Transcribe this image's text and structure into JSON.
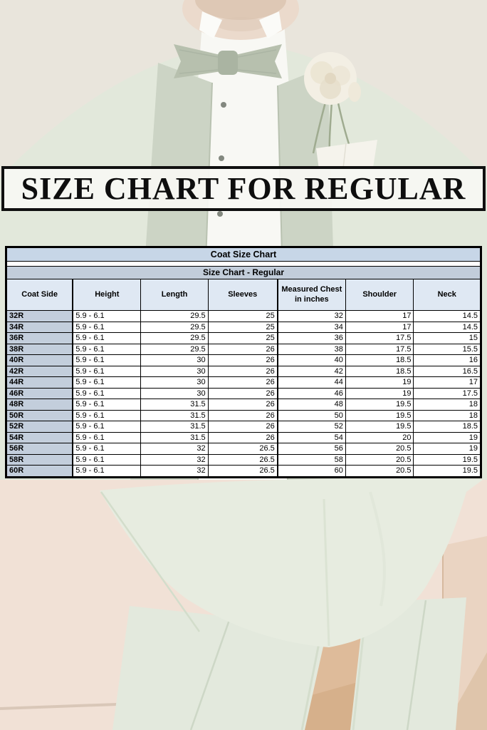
{
  "banner": {
    "text": "SIZE CHART FOR REGULAR"
  },
  "table": {
    "title": "Coat Size Chart",
    "subtitle": "Size Chart - Regular",
    "columns": [
      "Coat Side",
      "Height",
      "Length",
      "Sleeves",
      "Measured Chest in inches",
      "Shoulder",
      "Neck"
    ],
    "rows": [
      [
        "32R",
        "5.9 - 6.1",
        "29.5",
        "25",
        "32",
        "17",
        "14.5"
      ],
      [
        "34R",
        "5.9 - 6.1",
        "29.5",
        "25",
        "34",
        "17",
        "14.5"
      ],
      [
        "36R",
        "5.9 - 6.1",
        "29.5",
        "25",
        "36",
        "17.5",
        "15"
      ],
      [
        "38R",
        "5.9 - 6.1",
        "29.5",
        "26",
        "38",
        "17.5",
        "15.5"
      ],
      [
        "40R",
        "5.9 - 6.1",
        "30",
        "26",
        "40",
        "18.5",
        "16"
      ],
      [
        "42R",
        "5.9 - 6.1",
        "30",
        "26",
        "42",
        "18.5",
        "16.5"
      ],
      [
        "44R",
        "5.9 - 6.1",
        "30",
        "26",
        "44",
        "19",
        "17"
      ],
      [
        "46R",
        "5.9 - 6.1",
        "30",
        "26",
        "46",
        "19",
        "17.5"
      ],
      [
        "48R",
        "5.9 - 6.1",
        "31.5",
        "26",
        "48",
        "19.5",
        "18"
      ],
      [
        "50R",
        "5.9 - 6.1",
        "31.5",
        "26",
        "50",
        "19.5",
        "18"
      ],
      [
        "52R",
        "5.9 - 6.1",
        "31.5",
        "26",
        "52",
        "19.5",
        "18.5"
      ],
      [
        "54R",
        "5.9 - 6.1",
        "31.5",
        "26",
        "54",
        "20",
        "19"
      ],
      [
        "56R",
        "5.9 - 6.1",
        "32",
        "26.5",
        "56",
        "20.5",
        "19"
      ],
      [
        "58R",
        "5.9 - 6.1",
        "32",
        "26.5",
        "58",
        "20.5",
        "19.5"
      ],
      [
        "60R",
        "5.9 - 6.1",
        "32",
        "26.5",
        "60",
        "20.5",
        "19.5"
      ]
    ]
  },
  "colors": {
    "table_title_bg": "#c7d6e7",
    "table_subtitle_bg": "#c2cdda",
    "table_header_bg": "#dfe8f3",
    "row_label_bg": "#c3cedc",
    "table_border": "#000000",
    "banner_text": "#0e0e0e",
    "suit_mint": "#e2e8db",
    "lapel_sage": "#ccd4c5",
    "background_beige_top": "#e9e5dc",
    "background_beige_bottom": "#f1e1d6"
  }
}
